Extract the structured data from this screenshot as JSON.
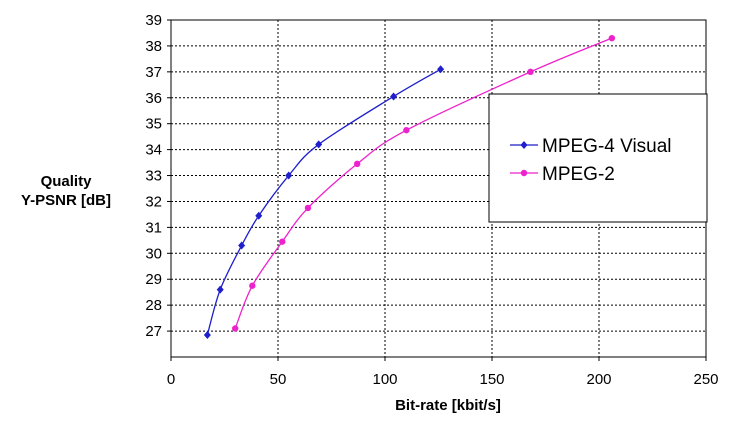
{
  "chart_data": {
    "type": "line",
    "xlabel": "Bit-rate [kbit/s]",
    "ylabel": [
      "Quality",
      "Y-PSNR [dB]"
    ],
    "xlim": [
      0,
      250
    ],
    "ylim": [
      26,
      39
    ],
    "xticks": [
      0,
      50,
      100,
      150,
      200,
      250
    ],
    "yticks": [
      27,
      28,
      29,
      30,
      31,
      32,
      33,
      34,
      35,
      36,
      37,
      38,
      39
    ],
    "grid": true,
    "legend_position": "right",
    "series": [
      {
        "name": "MPEG-4 Visual",
        "color": "#1f1fcc",
        "marker": "diamond",
        "x": [
          17,
          23,
          33,
          41,
          55,
          69,
          104,
          126
        ],
        "y": [
          26.85,
          28.6,
          30.3,
          31.45,
          33.0,
          34.2,
          36.05,
          37.1
        ]
      },
      {
        "name": "MPEG-2",
        "color": "#ee22cc",
        "marker": "circle",
        "x": [
          30,
          38,
          52,
          64,
          87,
          110,
          168,
          206
        ],
        "y": [
          27.1,
          28.75,
          30.45,
          31.75,
          33.45,
          34.75,
          37.0,
          38.3
        ]
      }
    ]
  }
}
